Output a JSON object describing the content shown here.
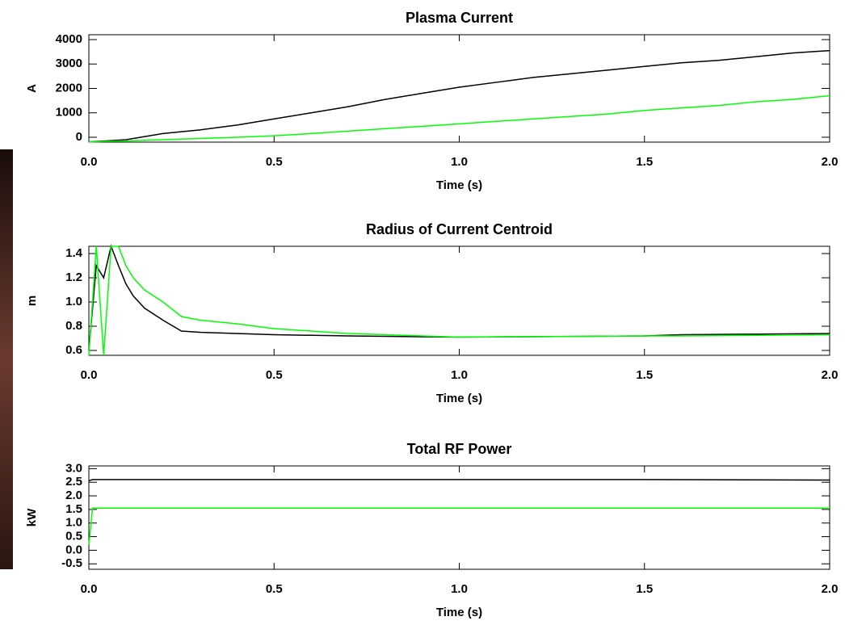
{
  "chart_data": [
    {
      "type": "line",
      "title": "Plasma Current",
      "xlabel": "Time (s)",
      "ylabel": "A",
      "x": [
        0,
        0.1,
        0.2,
        0.3,
        0.4,
        0.5,
        0.6,
        0.7,
        0.8,
        0.9,
        1.0,
        1.1,
        1.2,
        1.3,
        1.4,
        1.5,
        1.6,
        1.7,
        1.8,
        1.9,
        2.0
      ],
      "series": [
        {
          "color": "#000000",
          "values": [
            -190,
            -100,
            150,
            300,
            500,
            750,
            1000,
            1250,
            1550,
            1800,
            2050,
            2250,
            2450,
            2600,
            2750,
            2900,
            3050,
            3150,
            3300,
            3450,
            3550
          ]
        },
        {
          "color": "#00ff00",
          "values": [
            -190,
            -150,
            -100,
            -50,
            0,
            60,
            150,
            250,
            350,
            450,
            550,
            650,
            750,
            850,
            950,
            1100,
            1200,
            1300,
            1450,
            1550,
            1700
          ]
        }
      ],
      "xlim": [
        0,
        2
      ],
      "ylim": [
        -200,
        4200
      ],
      "xticks": [
        {
          "value": 0,
          "label": "0.0"
        },
        0.5,
        {
          "value": 1,
          "label": "1.0"
        },
        1.5,
        {
          "value": 2,
          "label": "2.0"
        }
      ],
      "yticks": [
        0,
        1000,
        2000,
        3000,
        4000
      ]
    },
    {
      "type": "line",
      "title": "Radius of Current Centroid",
      "xlabel": "Time (s)",
      "ylabel": "m",
      "x": [
        0,
        0.02,
        0.04,
        0.06,
        0.08,
        0.1,
        0.12,
        0.15,
        0.2,
        0.25,
        0.3,
        0.4,
        0.5,
        0.7,
        1.0,
        1.5,
        1.6,
        2.0
      ],
      "series": [
        {
          "color": "#000000",
          "values": [
            0.6,
            1.3,
            1.2,
            1.46,
            1.3,
            1.15,
            1.05,
            0.95,
            0.85,
            0.76,
            0.75,
            0.74,
            0.73,
            0.72,
            0.71,
            0.72,
            0.73,
            0.74
          ]
        },
        {
          "color": "#00ff00",
          "values": [
            0.56,
            1.46,
            0.56,
            1.46,
            1.46,
            1.3,
            1.2,
            1.1,
            1.0,
            0.88,
            0.85,
            0.82,
            0.78,
            0.74,
            0.71,
            0.72,
            0.72,
            0.73
          ]
        }
      ],
      "xlim": [
        0,
        2
      ],
      "ylim": [
        0.56,
        1.46
      ],
      "xticks": [
        {
          "value": 0,
          "label": "0.0"
        },
        0.5,
        {
          "value": 1,
          "label": "1.0"
        },
        1.5,
        {
          "value": 2,
          "label": "2.0"
        }
      ],
      "yticks": [
        0.6,
        0.8,
        {
          "value": 1,
          "label": "1.0"
        },
        1.2,
        1.4
      ]
    },
    {
      "type": "line",
      "title": "Total RF Power",
      "xlabel": "Time (s)",
      "ylabel": "kW",
      "x": [
        0,
        0.01,
        0.5,
        1.0,
        1.5,
        2.0
      ],
      "series": [
        {
          "color": "#000000",
          "values": [
            2.55,
            2.6,
            2.6,
            2.6,
            2.6,
            2.58
          ]
        },
        {
          "color": "#00ff00",
          "values": [
            0.2,
            1.55,
            1.55,
            1.55,
            1.55,
            1.55
          ]
        }
      ],
      "xlim": [
        0,
        2
      ],
      "ylim": [
        -0.7,
        3.1
      ],
      "xticks": [
        {
          "value": 0,
          "label": "0.0"
        },
        0.5,
        {
          "value": 1,
          "label": "1.0"
        },
        1.5,
        {
          "value": 2,
          "label": "2.0"
        }
      ],
      "yticks": [
        {
          "value": 3,
          "label": "3.0"
        },
        2.5,
        {
          "value": 2,
          "label": "2.0"
        },
        1.5,
        {
          "value": 1,
          "label": "1.0"
        },
        0.5,
        {
          "value": 0,
          "label": "0.0"
        },
        -0.5
      ]
    }
  ]
}
